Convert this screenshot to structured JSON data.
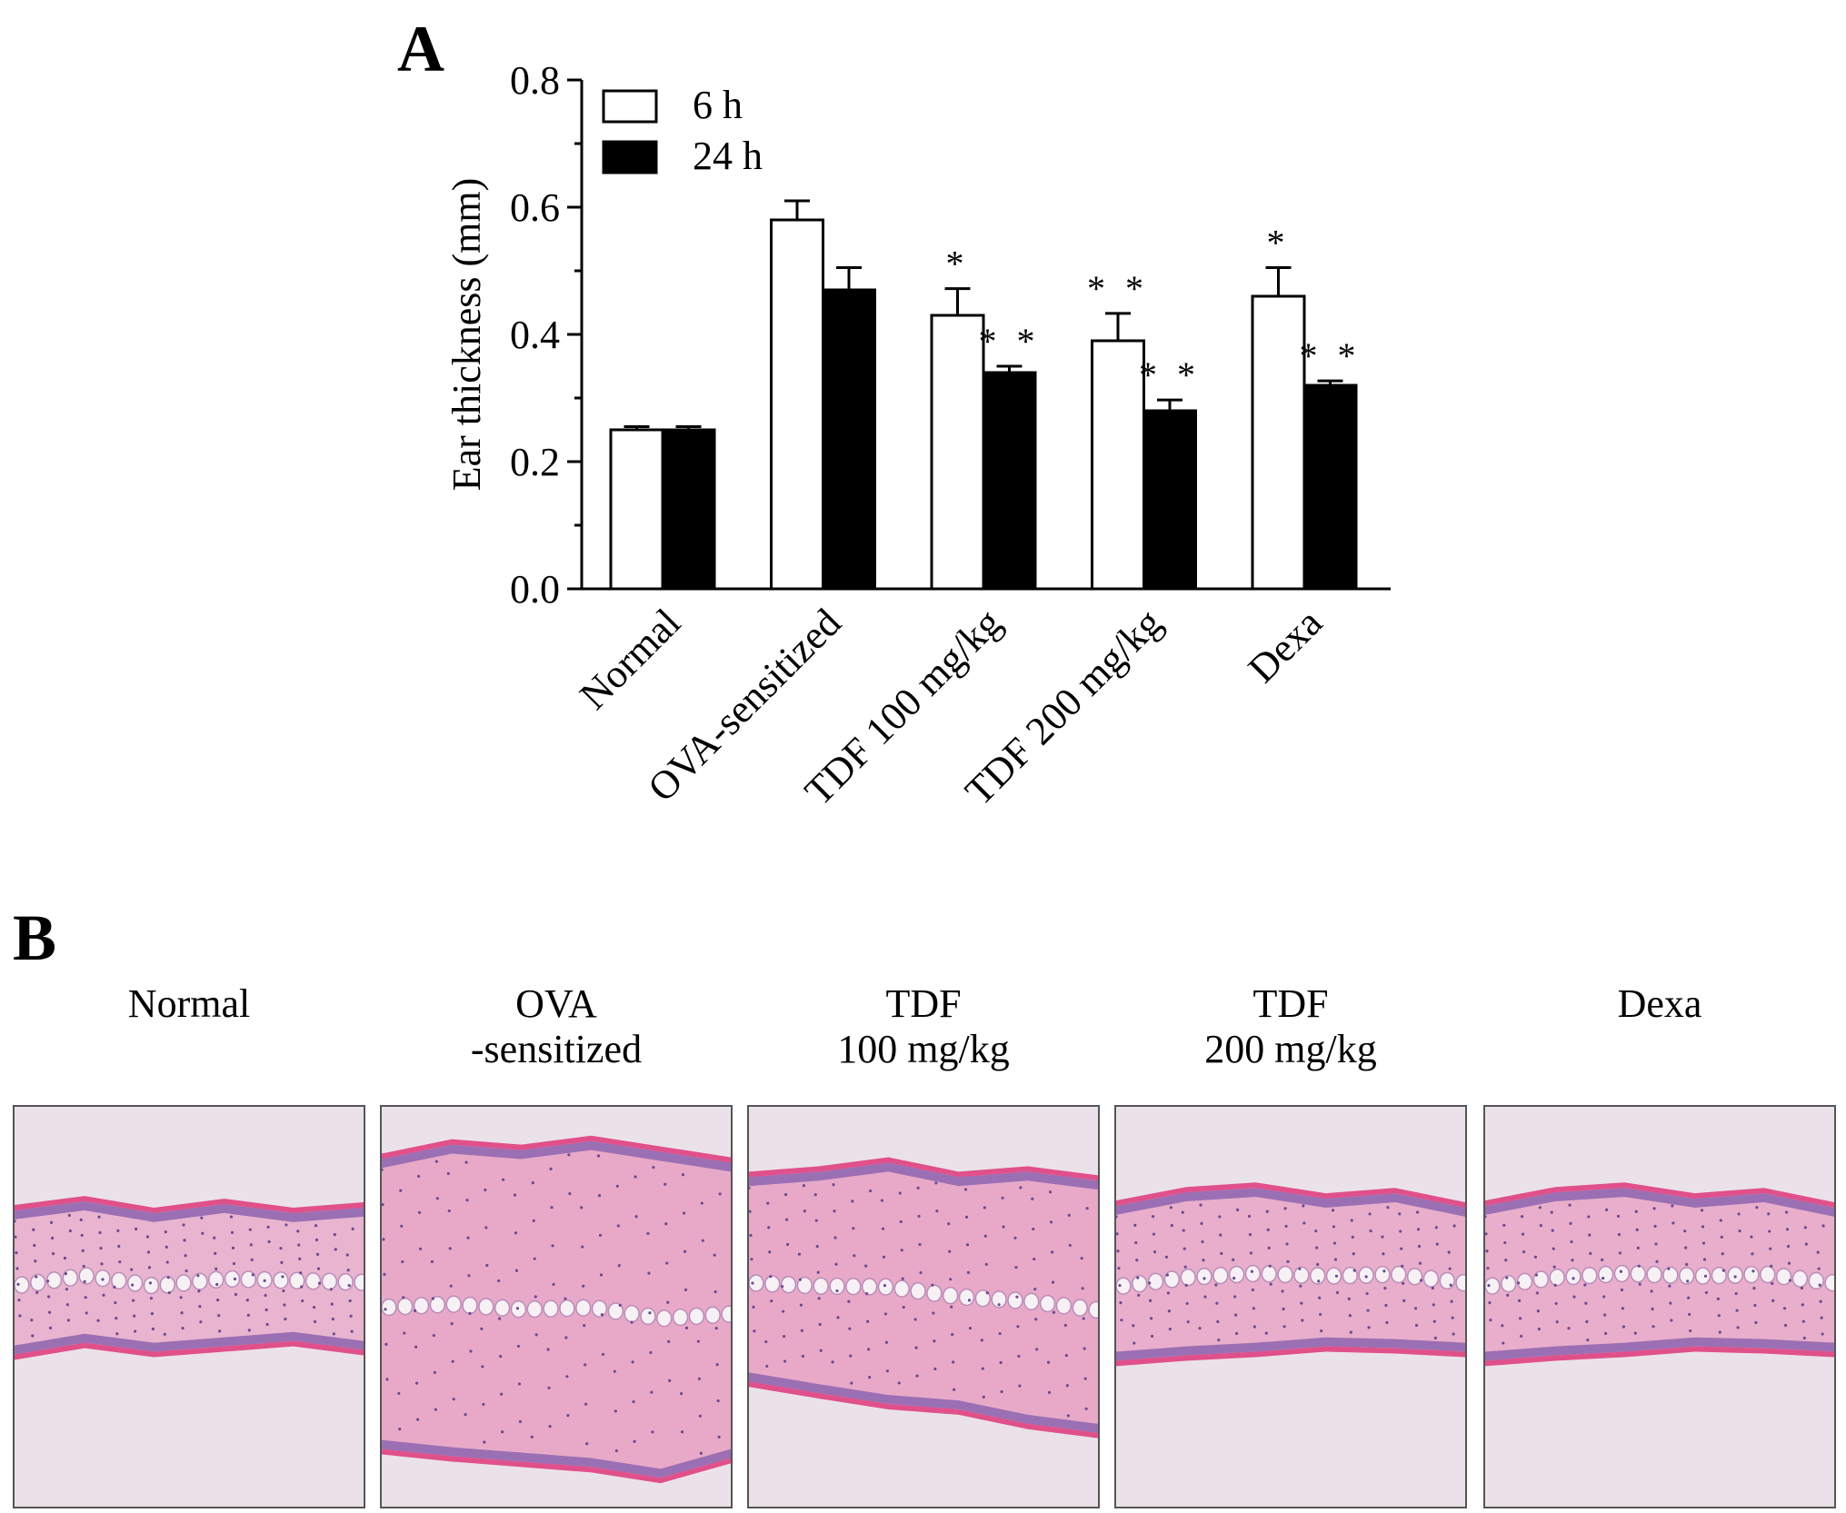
{
  "panel_a": {
    "letter": "A",
    "chart_data": {
      "type": "bar",
      "categories": [
        "Normal",
        "OVA-sensitized",
        "TDF 100 mg/kg",
        "TDF 200 mg/kg",
        "Dexa"
      ],
      "series": [
        {
          "name": "6 h",
          "color": "#ffffff",
          "values": [
            0.25,
            0.58,
            0.43,
            0.39,
            0.46
          ],
          "errors": [
            0.005,
            0.03,
            0.042,
            0.043,
            0.045
          ],
          "significance": [
            "",
            "",
            "*",
            "**",
            "*"
          ]
        },
        {
          "name": "24 h",
          "color": "#000000",
          "values": [
            0.25,
            0.47,
            0.34,
            0.28,
            0.32
          ],
          "errors": [
            0.005,
            0.035,
            0.01,
            0.017,
            0.007
          ],
          "significance": [
            "",
            "",
            "**",
            "**",
            "**"
          ]
        }
      ],
      "ylabel": "Ear thickness (mm)",
      "xlabel": "",
      "ylim": [
        0,
        0.8
      ],
      "yticks": [
        "0.0",
        "0.2",
        "0.4",
        "0.6",
        "0.8"
      ],
      "legend_position": "top-left",
      "grid": false
    }
  },
  "panel_b": {
    "letter": "B",
    "images": [
      {
        "label_lines": [
          "Normal"
        ],
        "tissue": "thin-normal"
      },
      {
        "label_lines": [
          "OVA",
          "-sensitized"
        ],
        "tissue": "thick-inflamed"
      },
      {
        "label_lines": [
          "TDF",
          "100 mg/kg"
        ],
        "tissue": "medium-inflamed"
      },
      {
        "label_lines": [
          "TDF",
          "200 mg/kg"
        ],
        "tissue": "mild"
      },
      {
        "label_lines": [
          "Dexa"
        ],
        "tissue": "mild"
      }
    ]
  }
}
